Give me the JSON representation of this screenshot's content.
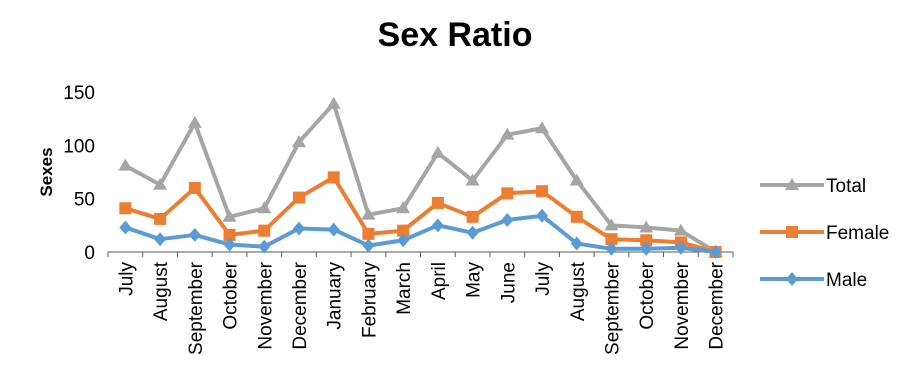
{
  "chart_data": {
    "type": "line",
    "title": "Sex Ratio",
    "xlabel": "",
    "ylabel": "Sexes",
    "ylim": [
      0,
      150
    ],
    "yticks": [
      0,
      50,
      100,
      150
    ],
    "grid": false,
    "legend_position": "right",
    "categories": [
      "July",
      "August",
      "September",
      "October",
      "November",
      "December",
      "January",
      "February",
      "March",
      "April",
      "May",
      "June",
      "July",
      "August",
      "September",
      "October",
      "November",
      "December"
    ],
    "series": [
      {
        "name": "Total",
        "color": "#a5a5a5",
        "marker": "triangle",
        "values": [
          81,
          63,
          121,
          33,
          41,
          103,
          139,
          35,
          41,
          93,
          67,
          110,
          116,
          67,
          25,
          23,
          20,
          0
        ]
      },
      {
        "name": "Female",
        "color": "#ed7d31",
        "marker": "square",
        "values": [
          41,
          31,
          60,
          16,
          20,
          51,
          70,
          17,
          20,
          46,
          33,
          55,
          57,
          33,
          12,
          11,
          9,
          0
        ]
      },
      {
        "name": "Male",
        "color": "#5b9bd5",
        "marker": "diamond",
        "values": [
          23,
          12,
          16,
          7,
          5,
          22,
          21,
          6,
          11,
          25,
          18,
          30,
          34,
          8,
          3,
          3,
          4,
          0
        ]
      }
    ]
  }
}
